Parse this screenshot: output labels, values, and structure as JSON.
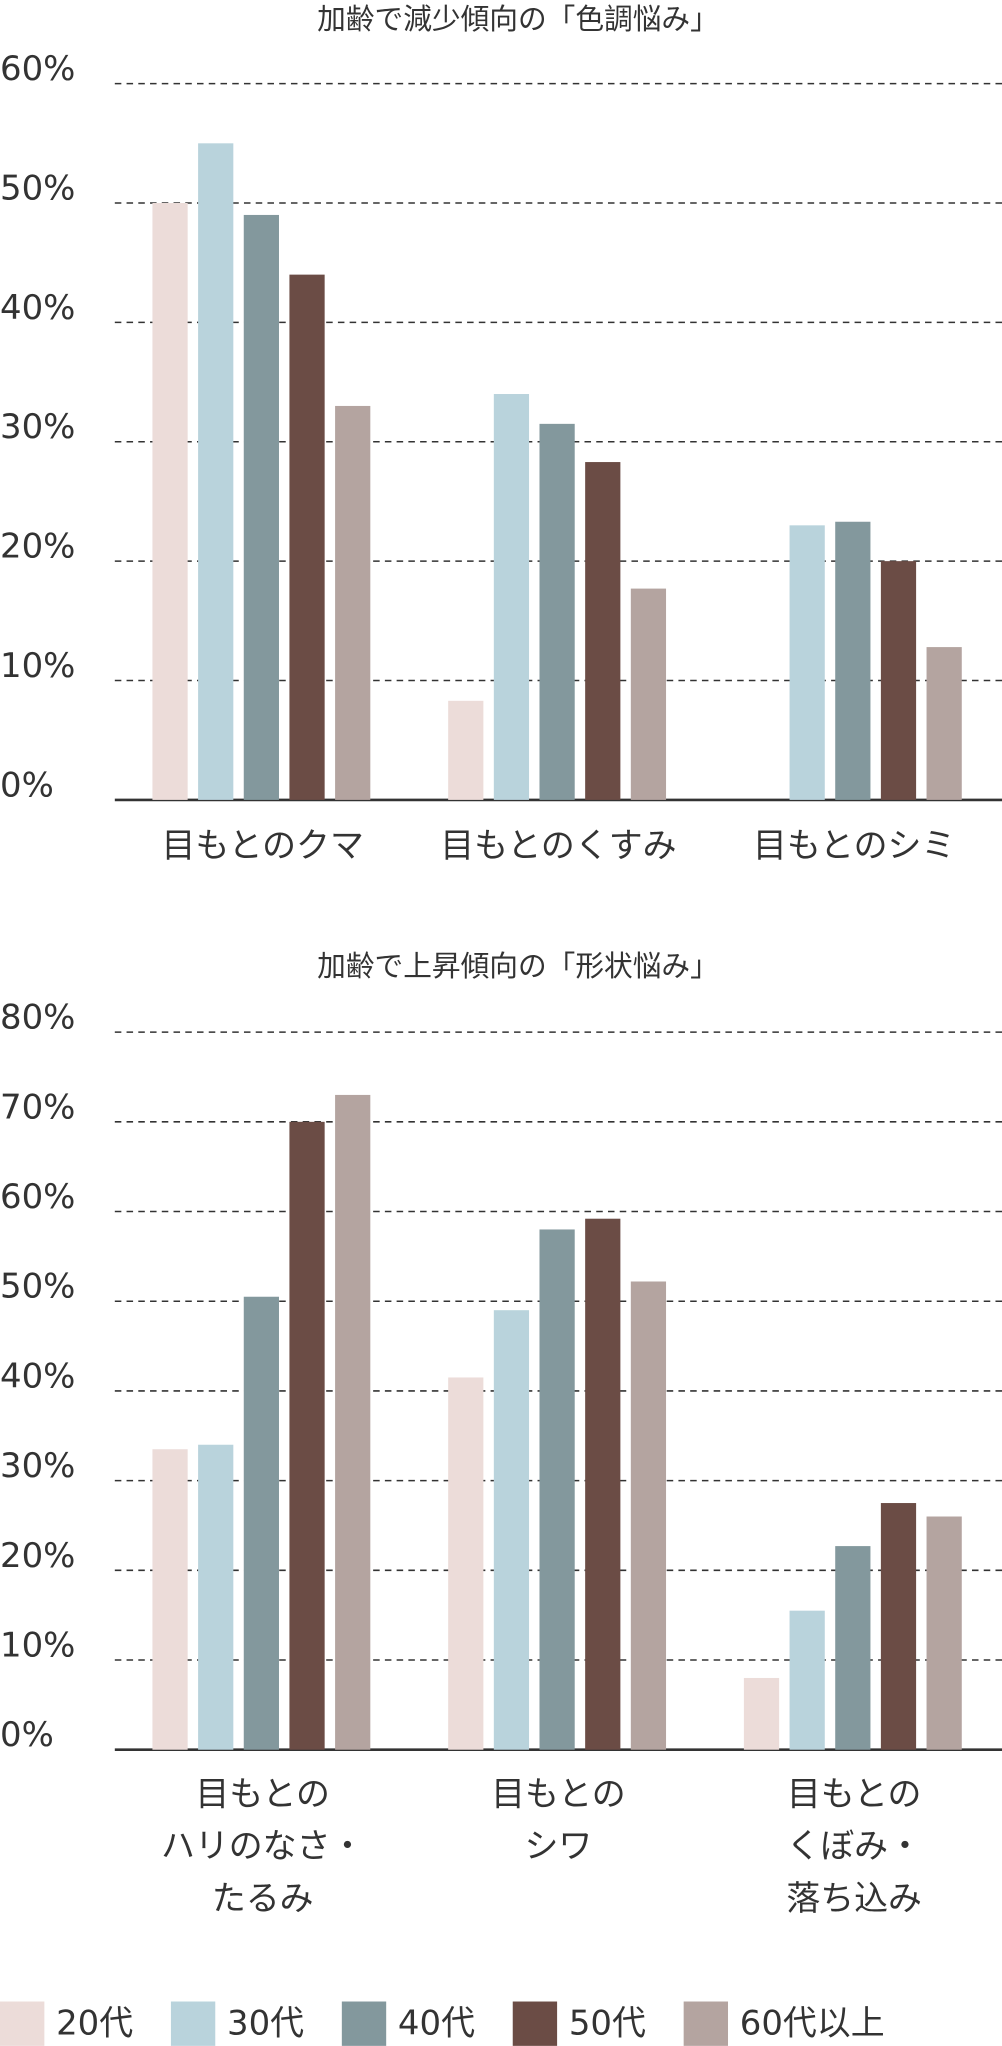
{
  "legend": [
    {
      "name": "20代",
      "color": "#ecdcd9"
    },
    {
      "name": "30代",
      "color": "#b9d3dc"
    },
    {
      "name": "40代",
      "color": "#83989d"
    },
    {
      "name": "50代",
      "color": "#6b4c45"
    },
    {
      "name": "60代以上",
      "color": "#b4a4a0"
    }
  ],
  "chart_data": [
    {
      "type": "bar",
      "title": "加齢で減少傾向の「色調悩み」",
      "categories": [
        "目もとのクマ",
        "目もとのくすみ",
        "目もとのシミ"
      ],
      "series": [
        {
          "values": [
            50,
            8.3,
            null
          ]
        },
        {
          "values": [
            55,
            34,
            23
          ]
        },
        {
          "values": [
            49,
            31.5,
            23.3
          ]
        },
        {
          "values": [
            44,
            28.3,
            20
          ]
        },
        {
          "values": [
            33,
            17.7,
            12.8
          ]
        }
      ],
      "ylim": [
        0,
        60
      ],
      "yticks": [
        {
          "value": 0,
          "label": "0%"
        },
        {
          "value": 10,
          "label": "10%"
        },
        {
          "value": 20,
          "label": "20%"
        },
        {
          "value": 30,
          "label": "30%"
        },
        {
          "value": 40,
          "label": "40%"
        },
        {
          "value": 50,
          "label": "50%"
        },
        {
          "value": 60,
          "label": "60%"
        }
      ],
      "grid": true
    },
    {
      "type": "bar",
      "title": "加齢で上昇傾向の「形状悩み」",
      "categories": [
        "目もとの\nハリのなさ・\nたるみ",
        "目もとの\nシワ",
        "目もとの\nくぼみ・\n落ち込み"
      ],
      "series": [
        {
          "values": [
            33.5,
            41.5,
            8
          ]
        },
        {
          "values": [
            34,
            49,
            15.5
          ]
        },
        {
          "values": [
            50.5,
            58,
            22.7
          ]
        },
        {
          "values": [
            70,
            59.2,
            27.5
          ]
        },
        {
          "values": [
            73,
            52.2,
            26
          ]
        }
      ],
      "ylim": [
        0,
        80
      ],
      "yticks": [
        {
          "value": 0,
          "label": "0%"
        },
        {
          "value": 10,
          "label": "10%"
        },
        {
          "value": 20,
          "label": "20%"
        },
        {
          "value": 30,
          "label": "30%"
        },
        {
          "value": 40,
          "label": "40%"
        },
        {
          "value": 50,
          "label": "50%"
        },
        {
          "value": 60,
          "label": "60%"
        },
        {
          "value": 70,
          "label": "70%"
        },
        {
          "value": 80,
          "label": "80%"
        }
      ],
      "grid": true
    }
  ]
}
